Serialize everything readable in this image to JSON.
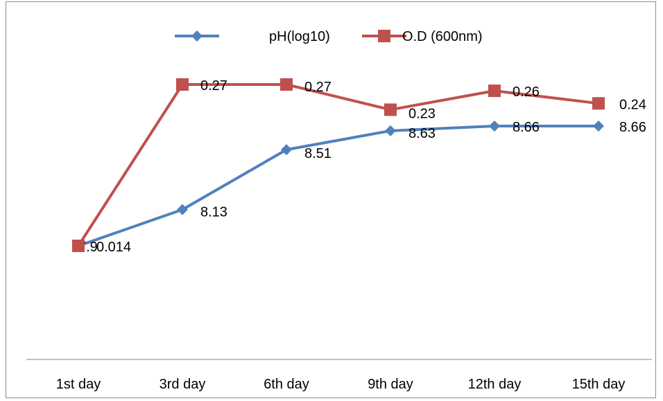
{
  "chart_data": {
    "type": "line",
    "categories": [
      "1st day",
      "3rd day",
      "6th day",
      "9th day",
      "12th day",
      "15th day"
    ],
    "series": [
      {
        "name": "pH(log10)",
        "color": "#4f81bd",
        "marker": "diamond",
        "values": [
          7.9,
          8.13,
          8.51,
          8.63,
          8.66,
          8.66
        ],
        "labels": [
          "7.9",
          "8.13",
          "8.51",
          "8.63",
          "8.66",
          "8.66"
        ]
      },
      {
        "name": "O.D (600nm)",
        "color": "#c0504d",
        "marker": "square",
        "values": [
          0.014,
          0.27,
          0.27,
          0.23,
          0.26,
          0.24
        ],
        "labels": [
          "0.014",
          "0.27",
          "0.27",
          "0.23",
          "0.26",
          "0.24"
        ]
      }
    ],
    "legend_position": "top",
    "grid": false
  }
}
